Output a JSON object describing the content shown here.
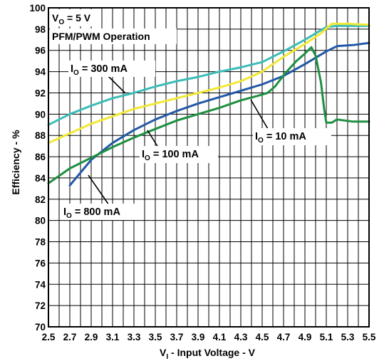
{
  "chart_data": {
    "type": "line",
    "xlabel": "V",
    "xlabel_sub": "I",
    "xlabel_rest": " - Input Voltage - V",
    "ylabel": "Efficiency - %",
    "xlim": [
      2.5,
      5.5
    ],
    "ylim": [
      70,
      100
    ],
    "xticks": [
      "2.5",
      "2.7",
      "2.9",
      "3.1",
      "3.3",
      "3.5",
      "3.7",
      "3.9",
      "4.1",
      "4.3",
      "4.5",
      "4.7",
      "4.9",
      "5.1",
      "5.3",
      "5.5"
    ],
    "yticks": [
      "70",
      "72",
      "74",
      "76",
      "78",
      "80",
      "82",
      "84",
      "86",
      "88",
      "90",
      "92",
      "94",
      "96",
      "98",
      "100"
    ],
    "grid": true,
    "annotations": {
      "vout_main": "V",
      "vout_sub": "O",
      "vout_rest": " = 5 V",
      "mode": "PFM/PWM Operation"
    },
    "series": [
      {
        "label_main": "I",
        "label_sub": "O",
        "label_rest": " = 300 mA",
        "color": "#3cbdb7",
        "points": [
          [
            2.5,
            89.0
          ],
          [
            2.7,
            90.0
          ],
          [
            2.9,
            90.8
          ],
          [
            3.1,
            91.5
          ],
          [
            3.3,
            92.0
          ],
          [
            3.5,
            92.6
          ],
          [
            3.7,
            93.1
          ],
          [
            3.9,
            93.5
          ],
          [
            4.1,
            94.0
          ],
          [
            4.3,
            94.4
          ],
          [
            4.5,
            94.9
          ],
          [
            4.7,
            95.9
          ],
          [
            4.9,
            97.0
          ],
          [
            5.1,
            98.2
          ],
          [
            5.2,
            98.3
          ],
          [
            5.3,
            98.3
          ],
          [
            5.5,
            98.3
          ]
        ]
      },
      {
        "label_main": "I",
        "label_sub": "O",
        "label_rest": " = 100 mA",
        "color": "#f2e835",
        "points": [
          [
            2.5,
            87.3
          ],
          [
            2.7,
            88.2
          ],
          [
            2.9,
            89.1
          ],
          [
            3.1,
            89.8
          ],
          [
            3.3,
            90.5
          ],
          [
            3.5,
            91.0
          ],
          [
            3.7,
            91.5
          ],
          [
            3.9,
            92.0
          ],
          [
            4.1,
            92.5
          ],
          [
            4.3,
            93.1
          ],
          [
            4.5,
            94.0
          ],
          [
            4.7,
            95.4
          ],
          [
            4.9,
            96.6
          ],
          [
            5.05,
            97.6
          ],
          [
            5.15,
            98.5
          ],
          [
            5.3,
            98.5
          ],
          [
            5.5,
            98.4
          ]
        ]
      },
      {
        "label_main": "I",
        "label_sub": "O",
        "label_rest": " = 800 mA",
        "color": "#2258a7",
        "points": [
          [
            2.7,
            83.3
          ],
          [
            2.9,
            85.7
          ],
          [
            3.1,
            87.3
          ],
          [
            3.3,
            88.5
          ],
          [
            3.5,
            89.5
          ],
          [
            3.7,
            90.3
          ],
          [
            3.9,
            91.0
          ],
          [
            4.1,
            91.6
          ],
          [
            4.3,
            92.2
          ],
          [
            4.5,
            92.8
          ],
          [
            4.7,
            93.6
          ],
          [
            4.9,
            94.7
          ],
          [
            5.1,
            95.9
          ],
          [
            5.2,
            96.4
          ],
          [
            5.35,
            96.5
          ],
          [
            5.5,
            96.7
          ]
        ]
      },
      {
        "label_main": "I",
        "label_sub": "O",
        "label_rest": " = 10 mA",
        "color": "#1e9040",
        "points": [
          [
            2.5,
            83.5
          ],
          [
            2.7,
            84.9
          ],
          [
            2.9,
            85.9
          ],
          [
            3.1,
            86.9
          ],
          [
            3.3,
            87.8
          ],
          [
            3.5,
            88.6
          ],
          [
            3.7,
            89.4
          ],
          [
            3.9,
            90.0
          ],
          [
            4.1,
            90.6
          ],
          [
            4.3,
            91.3
          ],
          [
            4.45,
            91.7
          ],
          [
            4.55,
            92.0
          ],
          [
            4.62,
            92.6
          ],
          [
            4.72,
            93.9
          ],
          [
            4.82,
            95.0
          ],
          [
            4.9,
            95.7
          ],
          [
            4.96,
            96.3
          ],
          [
            5.0,
            95.5
          ],
          [
            5.05,
            93.0
          ],
          [
            5.08,
            90.5
          ],
          [
            5.1,
            89.2
          ],
          [
            5.15,
            89.2
          ],
          [
            5.2,
            89.5
          ],
          [
            5.35,
            89.3
          ],
          [
            5.5,
            89.3
          ]
        ]
      }
    ]
  }
}
